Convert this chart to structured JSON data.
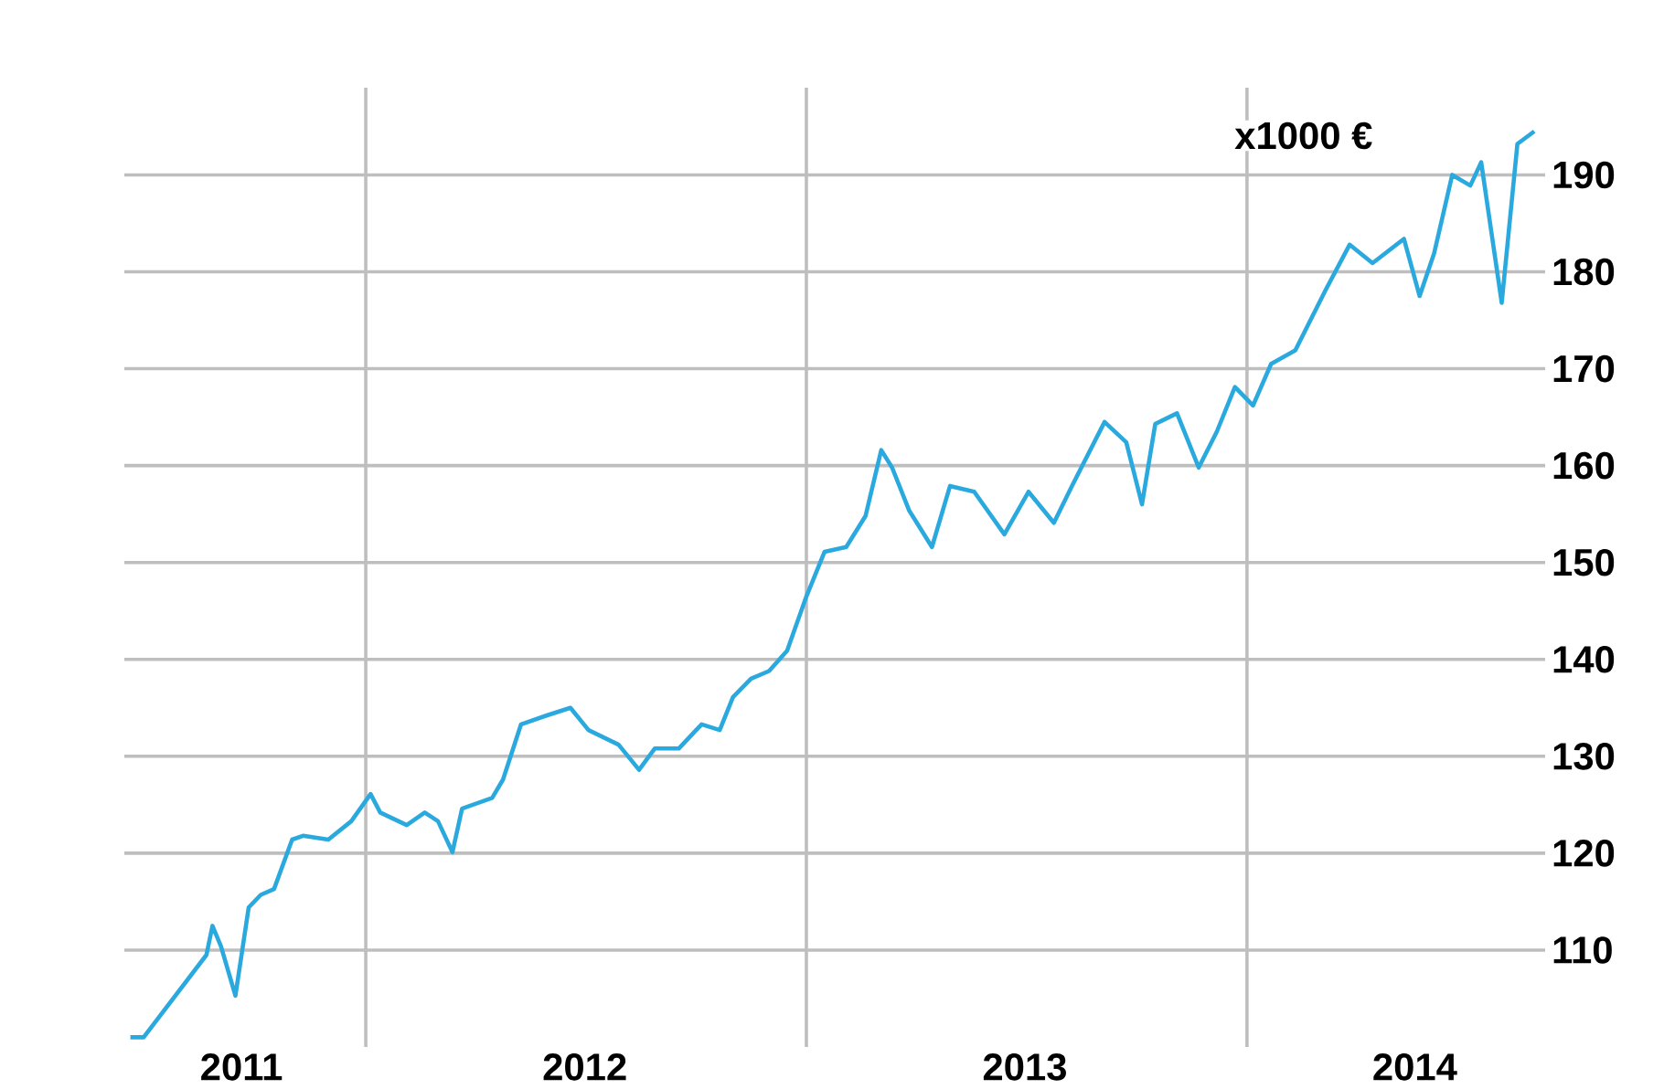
{
  "chart_data": {
    "type": "line",
    "ylabel": "x1000 €",
    "x": [
      "2011-06-20",
      "2011-07-01",
      "2011-08-22",
      "2011-08-27",
      "2011-09-03",
      "2011-09-15",
      "2011-09-26",
      "2011-10-06",
      "2011-10-17",
      "2011-11-01",
      "2011-11-10",
      "2011-12-01",
      "2011-12-20",
      "2012-01-05",
      "2012-01-13",
      "2012-02-04",
      "2012-02-19",
      "2012-03-01",
      "2012-03-13",
      "2012-03-21",
      "2012-04-15",
      "2012-04-24",
      "2012-05-09",
      "2012-05-30",
      "2012-06-19",
      "2012-07-04",
      "2012-07-29",
      "2012-08-15",
      "2012-08-28",
      "2012-09-17",
      "2012-10-06",
      "2012-10-21",
      "2012-11-01",
      "2012-11-16",
      "2012-12-01",
      "2012-12-16",
      "2013-01-01",
      "2013-01-16",
      "2013-02-03",
      "2013-02-19",
      "2013-03-04",
      "2013-03-13",
      "2013-03-27",
      "2013-04-15",
      "2013-04-30",
      "2013-05-20",
      "2013-06-14",
      "2013-07-04",
      "2013-07-25",
      "2013-08-09",
      "2013-09-05",
      "2013-09-23",
      "2013-10-06",
      "2013-10-17",
      "2013-11-04",
      "2013-11-22",
      "2013-12-07",
      "2013-12-22",
      "2014-01-06",
      "2014-01-21",
      "2014-02-10",
      "2014-03-07",
      "2014-03-27",
      "2014-04-15",
      "2014-05-11",
      "2014-05-24",
      "2014-06-05",
      "2014-06-20",
      "2014-07-05",
      "2014-07-14",
      "2014-07-31",
      "2014-08-13",
      "2014-08-27"
    ],
    "series": [
      {
        "color": "#2aa9df",
        "values": [
          101,
          101,
          109.5,
          112.5,
          110.4,
          105.3,
          114.4,
          115.7,
          116.3,
          121.4,
          121.8,
          121.4,
          123.3,
          126.1,
          124.2,
          122.9,
          124.2,
          123.3,
          120.1,
          124.6,
          125.7,
          127.6,
          133.3,
          134.2,
          135,
          132.7,
          131.2,
          128.6,
          130.8,
          130.8,
          133.3,
          132.7,
          136.1,
          138,
          138.8,
          140.9,
          146.5,
          151.1,
          151.6,
          154.8,
          161.6,
          159.8,
          155.4,
          151.6,
          157.9,
          157.3,
          152.9,
          157.3,
          154.1,
          157.9,
          164.5,
          162.4,
          156,
          164.3,
          165.4,
          159.8,
          163.5,
          168.1,
          166.2,
          170.5,
          171.9,
          178.1,
          182.8,
          180.9,
          183.4,
          177.5,
          181.9,
          190,
          188.9,
          191.3,
          176.8,
          193.2,
          194.5
        ]
      }
    ],
    "xlim": [
      "2011-06-15",
      "2014-09-05"
    ],
    "xticks": [
      {
        "value": "2012-01-01",
        "label": null
      },
      {
        "value": "2013-01-01",
        "label": null
      },
      {
        "value": "2014-01-01",
        "label": null
      },
      {
        "value": "2011-09-20",
        "label": "2011"
      },
      {
        "value": "2012-07-01",
        "label": "2012"
      },
      {
        "value": "2013-07-01",
        "label": "2013"
      },
      {
        "value": "2014-05-20",
        "label": "2014"
      }
    ],
    "ylim": [
      100,
      199
    ],
    "yticks": [
      110,
      120,
      130,
      140,
      150,
      160,
      170,
      180,
      190
    ],
    "grid": true,
    "marker": "none",
    "line_style": "solid"
  }
}
